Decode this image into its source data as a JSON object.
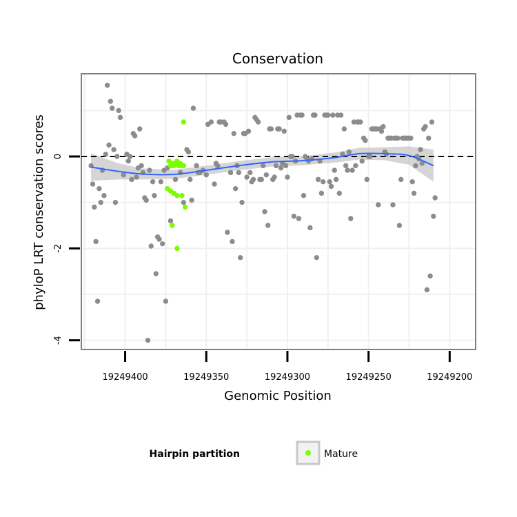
{
  "chart_data": {
    "type": "scatter",
    "title": "Conservation",
    "xlabel": "Genomic Position",
    "ylabel": "phyloP LRT conservation scores",
    "x_reversed": true,
    "xlim": [
      19249184,
      19249427
    ],
    "ylim": [
      -4.2,
      1.8
    ],
    "x_ticks": [
      19249400,
      19249350,
      19249300,
      19249250,
      19249200
    ],
    "y_ticks": [
      0,
      -2,
      -4
    ],
    "grid": true,
    "reference_line": {
      "y": 0,
      "style": "dashed"
    },
    "legend": {
      "title": "Hairpin partition",
      "position": "bottom",
      "entries": [
        "Mature"
      ]
    },
    "colors": {
      "other": "#8c8c8c",
      "mature": "#7cfc00",
      "smooth": "#3366ff",
      "band": "#bebebe"
    },
    "series": [
      {
        "name": "",
        "points": [
          [
            19249421,
            -0.2
          ],
          [
            19249420,
            -0.6
          ],
          [
            19249419,
            -1.1
          ],
          [
            19249418,
            -1.85
          ],
          [
            19249417,
            -3.15
          ],
          [
            19249416,
            -0.7
          ],
          [
            19249415,
            -1.0
          ],
          [
            19249414,
            -0.3
          ],
          [
            19249413,
            -0.85
          ],
          [
            19249412,
            0.05
          ],
          [
            19249411,
            1.55
          ],
          [
            19249410,
            0.25
          ],
          [
            19249409,
            1.2
          ],
          [
            19249408,
            1.05
          ],
          [
            19249407,
            0.15
          ],
          [
            19249406,
            -1.0
          ],
          [
            19249405,
            0.0
          ],
          [
            19249404,
            1.0
          ],
          [
            19249403,
            0.85
          ],
          [
            19249401,
            -0.4
          ],
          [
            19249399,
            0.05
          ],
          [
            19249398,
            -0.1
          ],
          [
            19249397,
            0.0
          ],
          [
            19249396,
            -0.5
          ],
          [
            19249395,
            0.5
          ],
          [
            19249394,
            0.45
          ],
          [
            19249393,
            -0.45
          ],
          [
            19249392,
            -0.25
          ],
          [
            19249391,
            0.6
          ],
          [
            19249390,
            -0.2
          ],
          [
            19249389,
            -0.35
          ],
          [
            19249388,
            -0.9
          ],
          [
            19249387,
            -0.95
          ],
          [
            19249386,
            -4.0
          ],
          [
            19249385,
            -0.3
          ],
          [
            19249384,
            -1.95
          ],
          [
            19249383,
            -0.55
          ],
          [
            19249382,
            -0.85
          ],
          [
            19249381,
            -2.55
          ],
          [
            19249380,
            -1.75
          ],
          [
            19249379,
            -1.8
          ],
          [
            19249378,
            -0.55
          ],
          [
            19249377,
            -1.9
          ],
          [
            19249376,
            -0.3
          ],
          [
            19249375,
            -3.15
          ],
          [
            19249374,
            -0.25
          ],
          [
            19249372,
            -1.4
          ],
          [
            19249369,
            -0.5
          ],
          [
            19249366,
            -0.35
          ],
          [
            19249364,
            -1.0
          ],
          [
            19249362,
            0.15
          ],
          [
            19249361,
            0.1
          ],
          [
            19249360,
            -0.5
          ],
          [
            19249359,
            -0.95
          ],
          [
            19249358,
            1.05
          ],
          [
            19249356,
            -0.2
          ],
          [
            19249355,
            -0.35
          ],
          [
            19249354,
            -0.35
          ],
          [
            19249352,
            -0.3
          ],
          [
            19249350,
            -0.4
          ],
          [
            19249349,
            0.7
          ],
          [
            19249347,
            0.75
          ],
          [
            19249345,
            -0.6
          ],
          [
            19249344,
            -0.15
          ],
          [
            19249343,
            -0.2
          ],
          [
            19249342,
            0.75
          ],
          [
            19249341,
            0.75
          ],
          [
            19249339,
            0.75
          ],
          [
            19249338,
            0.7
          ],
          [
            19249337,
            -1.65
          ],
          [
            19249335,
            -0.35
          ],
          [
            19249334,
            -1.85
          ],
          [
            19249333,
            0.5
          ],
          [
            19249332,
            -0.7
          ],
          [
            19249331,
            -0.2
          ],
          [
            19249330,
            -0.35
          ],
          [
            19249329,
            -2.2
          ],
          [
            19249328,
            -1.0
          ],
          [
            19249327,
            0.5
          ],
          [
            19249326,
            0.5
          ],
          [
            19249325,
            -0.45
          ],
          [
            19249324,
            0.55
          ],
          [
            19249323,
            -0.35
          ],
          [
            19249322,
            -0.55
          ],
          [
            19249321,
            -0.5
          ],
          [
            19249320,
            0.85
          ],
          [
            19249319,
            0.8
          ],
          [
            19249318,
            0.75
          ],
          [
            19249317,
            -0.5
          ],
          [
            19249316,
            -0.5
          ],
          [
            19249315,
            -0.2
          ],
          [
            19249314,
            -1.2
          ],
          [
            19249313,
            -0.4
          ],
          [
            19249312,
            -1.5
          ],
          [
            19249311,
            0.6
          ],
          [
            19249310,
            0.6
          ],
          [
            19249309,
            -0.5
          ],
          [
            19249308,
            -0.45
          ],
          [
            19249307,
            -0.2
          ],
          [
            19249306,
            0.6
          ],
          [
            19249305,
            0.6
          ],
          [
            19249304,
            -0.25
          ],
          [
            19249303,
            -0.15
          ],
          [
            19249302,
            0.55
          ],
          [
            19249301,
            -0.2
          ],
          [
            19249300,
            -0.45
          ],
          [
            19249299,
            0.85
          ],
          [
            19249298,
            0.0
          ],
          [
            19249297,
            0.0
          ],
          [
            19249296,
            -1.3
          ],
          [
            19249295,
            -0.1
          ],
          [
            19249294,
            0.9
          ],
          [
            19249293,
            -1.35
          ],
          [
            19249292,
            0.9
          ],
          [
            19249291,
            0.9
          ],
          [
            19249290,
            -0.85
          ],
          [
            19249289,
            0.0
          ],
          [
            19249288,
            -0.05
          ],
          [
            19249287,
            -0.1
          ],
          [
            19249286,
            -1.55
          ],
          [
            19249285,
            -0.05
          ],
          [
            19249284,
            0.9
          ],
          [
            19249283,
            0.9
          ],
          [
            19249282,
            -2.2
          ],
          [
            19249281,
            -0.5
          ],
          [
            19249280,
            -0.1
          ],
          [
            19249279,
            -0.8
          ],
          [
            19249278,
            -0.55
          ],
          [
            19249277,
            0.9
          ],
          [
            19249276,
            0.9
          ],
          [
            19249275,
            0.9
          ],
          [
            19249274,
            -0.55
          ],
          [
            19249273,
            -0.65
          ],
          [
            19249272,
            0.9
          ],
          [
            19249271,
            -0.3
          ],
          [
            19249270,
            -0.5
          ],
          [
            19249269,
            0.9
          ],
          [
            19249268,
            -0.8
          ],
          [
            19249267,
            0.9
          ],
          [
            19249266,
            0.05
          ],
          [
            19249265,
            0.6
          ],
          [
            19249264,
            -0.2
          ],
          [
            19249263,
            -0.3
          ],
          [
            19249262,
            0.1
          ],
          [
            19249261,
            -1.35
          ],
          [
            19249260,
            -0.3
          ],
          [
            19249259,
            0.75
          ],
          [
            19249258,
            -0.2
          ],
          [
            19249257,
            0.75
          ],
          [
            19249256,
            0.75
          ],
          [
            19249255,
            0.75
          ],
          [
            19249254,
            -0.1
          ],
          [
            19249253,
            0.4
          ],
          [
            19249252,
            0.35
          ],
          [
            19249251,
            -0.5
          ],
          [
            19249250,
            0.0
          ],
          [
            19249249,
            0.0
          ],
          [
            19249248,
            0.6
          ],
          [
            19249247,
            0.6
          ],
          [
            19249246,
            0.6
          ],
          [
            19249245,
            0.6
          ],
          [
            19249244,
            -1.05
          ],
          [
            19249243,
            0.6
          ],
          [
            19249242,
            0.55
          ],
          [
            19249241,
            0.65
          ],
          [
            19249240,
            0.1
          ],
          [
            19249239,
            0.05
          ],
          [
            19249238,
            0.4
          ],
          [
            19249237,
            0.4
          ],
          [
            19249236,
            0.4
          ],
          [
            19249235,
            -1.05
          ],
          [
            19249234,
            0.4
          ],
          [
            19249233,
            0.4
          ],
          [
            19249232,
            0.4
          ],
          [
            19249231,
            -1.5
          ],
          [
            19249230,
            -0.5
          ],
          [
            19249229,
            0.4
          ],
          [
            19249228,
            0.4
          ],
          [
            19249227,
            0.4
          ],
          [
            19249226,
            0.4
          ],
          [
            19249225,
            0.4
          ],
          [
            19249224,
            0.4
          ],
          [
            19249223,
            -0.55
          ],
          [
            19249222,
            -0.8
          ],
          [
            19249221,
            -0.2
          ],
          [
            19249220,
            0.0
          ],
          [
            19249219,
            -0.05
          ],
          [
            19249218,
            0.15
          ],
          [
            19249217,
            -0.15
          ],
          [
            19249216,
            0.6
          ],
          [
            19249215,
            0.65
          ],
          [
            19249214,
            -2.9
          ],
          [
            19249213,
            0.4
          ],
          [
            19249212,
            -2.6
          ],
          [
            19249211,
            0.75
          ],
          [
            19249210,
            -1.3
          ],
          [
            19249209,
            -0.9
          ]
        ]
      },
      {
        "name": "Mature",
        "points": [
          [
            19249373,
            -0.1
          ],
          [
            19249372,
            -0.2
          ],
          [
            19249371,
            -0.15
          ],
          [
            19249370,
            -0.2
          ],
          [
            19249369,
            -0.15
          ],
          [
            19249368,
            -0.1
          ],
          [
            19249367,
            -0.2
          ],
          [
            19249366,
            -0.15
          ],
          [
            19249365,
            -0.2
          ],
          [
            19249364,
            -0.2
          ],
          [
            19249374,
            -0.7
          ],
          [
            19249372,
            -0.75
          ],
          [
            19249370,
            -0.8
          ],
          [
            19249368,
            -0.85
          ],
          [
            19249365,
            -0.85
          ],
          [
            19249363,
            -1.1
          ],
          [
            19249371,
            -1.5
          ],
          [
            19249368,
            -2.0
          ],
          [
            19249364,
            0.75
          ]
        ]
      }
    ],
    "smooth": [
      [
        19249421,
        -0.23
      ],
      [
        19249405,
        -0.32
      ],
      [
        19249390,
        -0.38
      ],
      [
        19249370,
        -0.39
      ],
      [
        19249350,
        -0.3
      ],
      [
        19249330,
        -0.2
      ],
      [
        19249310,
        -0.12
      ],
      [
        19249290,
        -0.09
      ],
      [
        19249270,
        -0.02
      ],
      [
        19249256,
        0.06
      ],
      [
        19249240,
        0.06
      ],
      [
        19249225,
        0.02
      ],
      [
        19249210,
        -0.2
      ]
    ],
    "band_halfwidth": [
      [
        19249421,
        0.3
      ],
      [
        19249405,
        0.18
      ],
      [
        19249390,
        0.12
      ],
      [
        19249370,
        0.1
      ],
      [
        19249350,
        0.1
      ],
      [
        19249330,
        0.1
      ],
      [
        19249310,
        0.1
      ],
      [
        19249290,
        0.1
      ],
      [
        19249270,
        0.11
      ],
      [
        19249256,
        0.13
      ],
      [
        19249240,
        0.14
      ],
      [
        19249225,
        0.2
      ],
      [
        19249210,
        0.35
      ]
    ]
  }
}
